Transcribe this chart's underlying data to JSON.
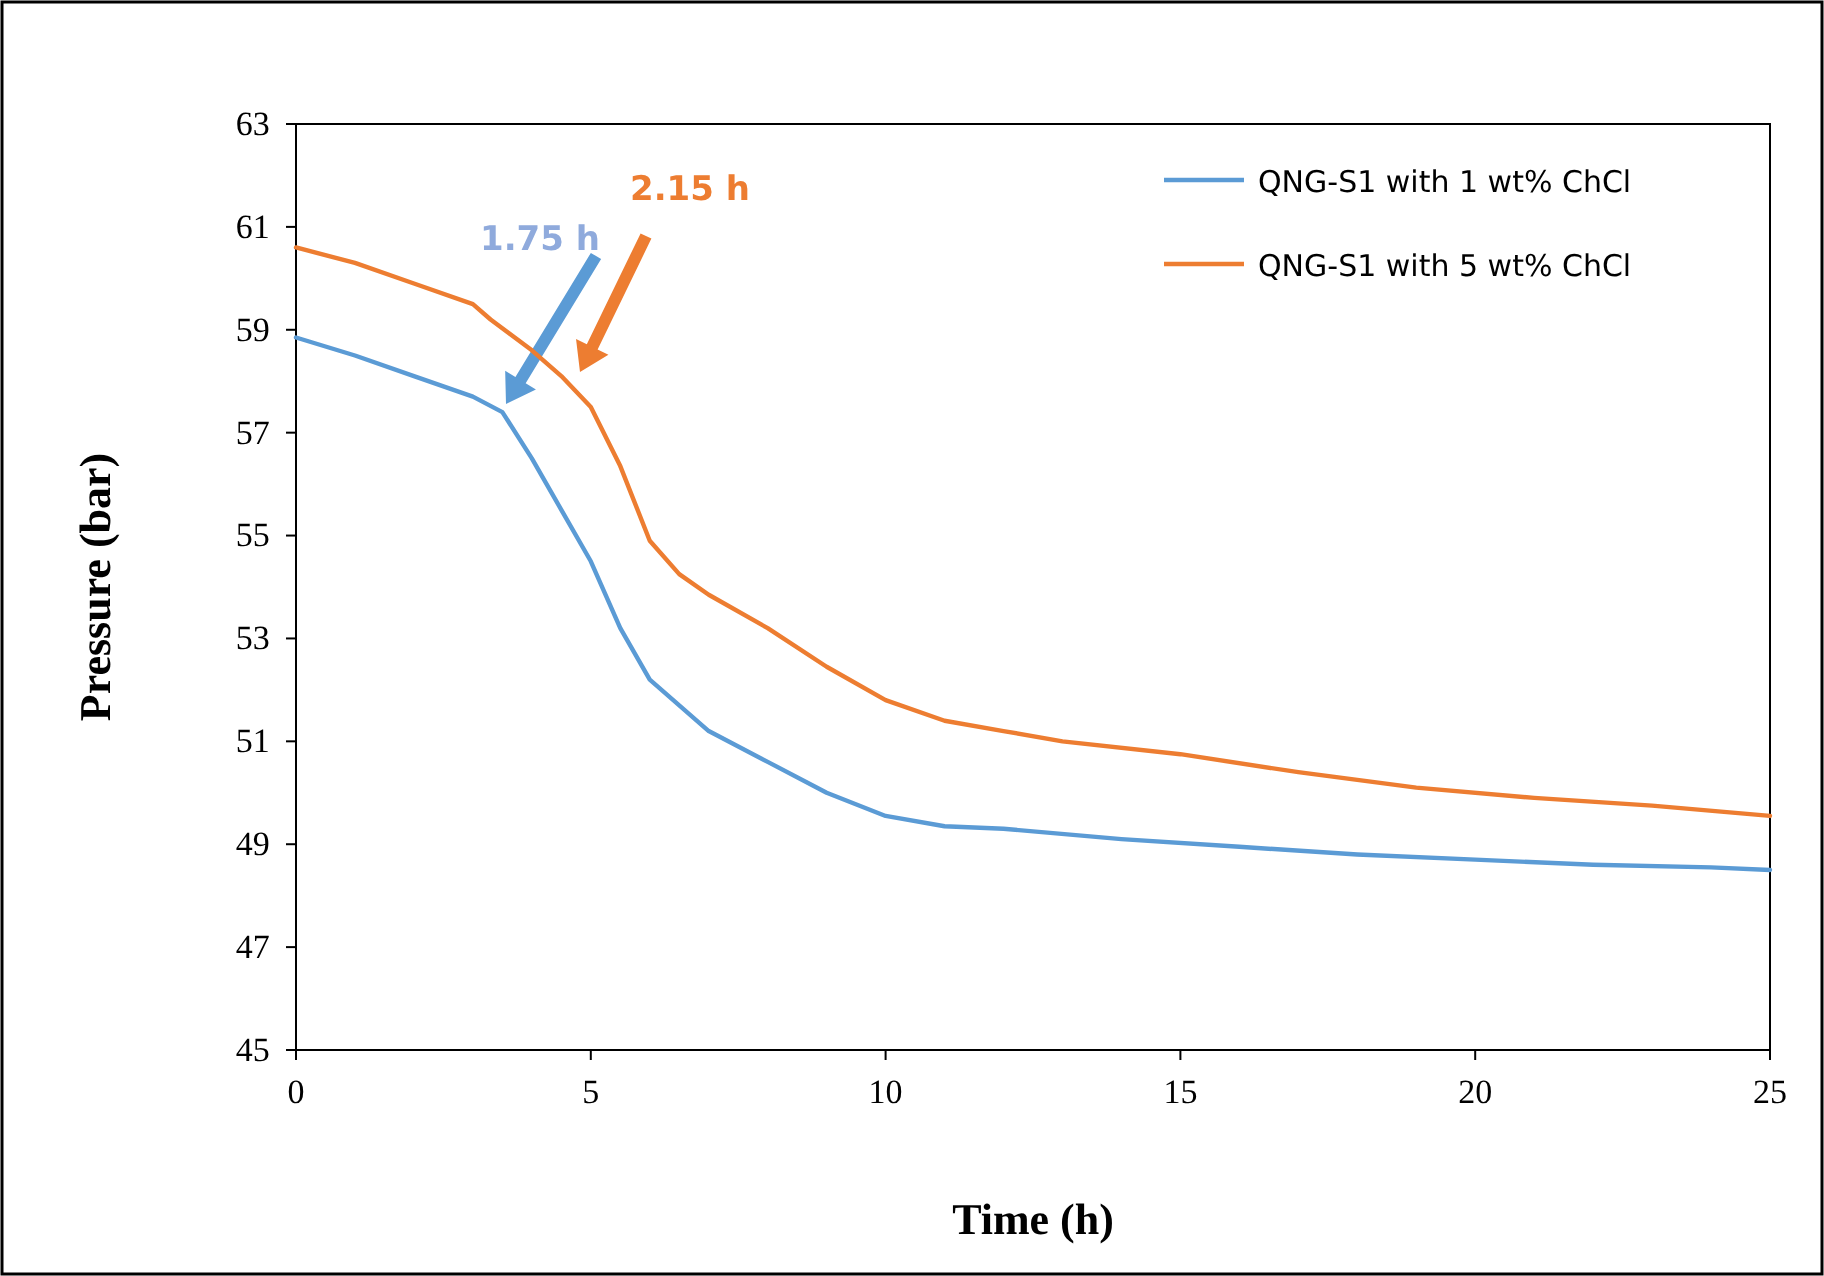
{
  "chart_data": {
    "type": "line",
    "xlabel": "Time (h)",
    "ylabel": "Pressure (bar)",
    "xlim": [
      0,
      25
    ],
    "xticks": [
      0,
      5,
      10,
      15,
      20,
      25
    ],
    "ylim": [
      45,
      63
    ],
    "yticks": [
      45,
      47,
      49,
      51,
      53,
      55,
      57,
      59,
      61,
      63
    ],
    "legend": "top right",
    "grid": false,
    "marker": "none",
    "line_style": "solid",
    "series": [
      {
        "name": "QNG-S1 with 1 wt% ChCl",
        "color": "#5b9bd5",
        "x": [
          0,
          1,
          2,
          3,
          3.5,
          4,
          4.5,
          5,
          5.5,
          6,
          7,
          8,
          9,
          10,
          11,
          12,
          14,
          16,
          18,
          20,
          22,
          24,
          25
        ],
        "values": [
          58.85,
          58.5,
          58.1,
          57.7,
          57.4,
          56.5,
          55.5,
          54.5,
          53.2,
          52.2,
          51.2,
          50.6,
          50.0,
          49.55,
          49.35,
          49.3,
          49.1,
          48.95,
          48.8,
          48.7,
          48.6,
          48.55,
          48.5
        ]
      },
      {
        "name": "QNG-S1 with 5 wt% ChCl",
        "color": "#ed7d31",
        "x": [
          0,
          1,
          2,
          3,
          3.3,
          4,
          4.5,
          5,
          5.5,
          6,
          6.5,
          7,
          8,
          9,
          10,
          11,
          12,
          13,
          15,
          17,
          19,
          21,
          23,
          25
        ],
        "values": [
          60.6,
          60.3,
          59.9,
          59.5,
          59.2,
          58.6,
          58.1,
          57.5,
          56.35,
          54.9,
          54.25,
          53.85,
          53.2,
          52.45,
          51.8,
          51.4,
          51.2,
          51.0,
          50.75,
          50.4,
          50.1,
          49.9,
          49.75,
          49.55
        ]
      }
    ],
    "annotations": [
      "1.75 h",
      "2.15 h"
    ]
  }
}
